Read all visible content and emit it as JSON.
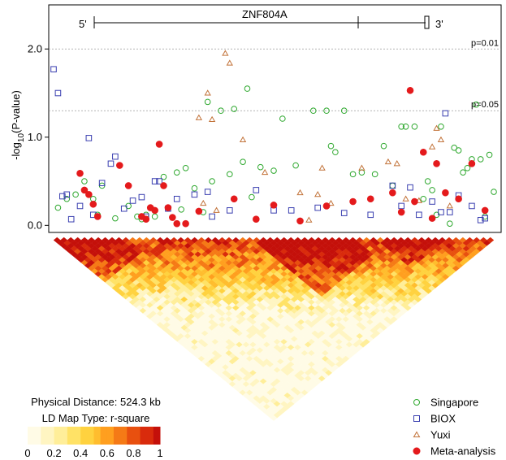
{
  "chart_data": {
    "type": "scatter",
    "ylabel_main": "-log",
    "ylabel_sub": "10",
    "ylabel_tail": "(P-value)",
    "ylim": [
      -0.08,
      2.5
    ],
    "y_ticks": [
      0.0,
      1.0,
      2.0
    ],
    "y_tick_labels": [
      "0.0",
      "1.0",
      "2.0"
    ],
    "thresholds": [
      {
        "value": 2.0,
        "label": "p=0.01"
      },
      {
        "value": 1.3,
        "label": "p=0.05"
      }
    ],
    "gene": {
      "name": "ZNF804A",
      "five_prime": "5'",
      "three_prime": "3'"
    },
    "legend": [
      "Singapore",
      "BIOX",
      "Yuxi",
      "Meta-analysis"
    ],
    "colors": {
      "singapore": "#2ea82e",
      "biox": "#3a3fb0",
      "yuxi": "#c2733a",
      "meta": "#e41a1c",
      "threshold_line": "#9a9a9a"
    },
    "ld": {
      "physical_distance_label": "Physical Distance: 524.3 kb",
      "map_type_label": "LD Map Type: r-square",
      "colorbar_ticks": [
        "0",
        "0.2",
        "0.4",
        "0.6",
        "0.8",
        "1"
      ]
    },
    "series": [
      {
        "name": "Singapore",
        "marker": "circle-open",
        "points": [
          [
            0.01,
            0.2
          ],
          [
            0.03,
            0.3
          ],
          [
            0.05,
            0.35
          ],
          [
            0.07,
            0.5
          ],
          [
            0.09,
            0.3
          ],
          [
            0.1,
            0.12
          ],
          [
            0.11,
            0.45
          ],
          [
            0.14,
            0.08
          ],
          [
            0.17,
            0.22
          ],
          [
            0.19,
            0.1
          ],
          [
            0.2,
            0.07
          ],
          [
            0.21,
            0.12
          ],
          [
            0.23,
            0.1
          ],
          [
            0.25,
            0.55
          ],
          [
            0.28,
            0.6
          ],
          [
            0.29,
            0.18
          ],
          [
            0.3,
            0.65
          ],
          [
            0.32,
            0.42
          ],
          [
            0.34,
            0.15
          ],
          [
            0.35,
            1.4
          ],
          [
            0.36,
            0.5
          ],
          [
            0.38,
            1.3
          ],
          [
            0.4,
            0.58
          ],
          [
            0.41,
            1.32
          ],
          [
            0.43,
            0.72
          ],
          [
            0.44,
            1.55
          ],
          [
            0.45,
            0.32
          ],
          [
            0.47,
            0.66
          ],
          [
            0.5,
            0.62
          ],
          [
            0.52,
            1.21
          ],
          [
            0.55,
            0.68
          ],
          [
            0.59,
            1.3
          ],
          [
            0.62,
            1.3
          ],
          [
            0.63,
            0.9
          ],
          [
            0.64,
            0.83
          ],
          [
            0.66,
            1.3
          ],
          [
            0.68,
            0.58
          ],
          [
            0.7,
            0.6
          ],
          [
            0.73,
            0.58
          ],
          [
            0.75,
            0.9
          ],
          [
            0.77,
            0.45
          ],
          [
            0.79,
            1.12
          ],
          [
            0.8,
            1.12
          ],
          [
            0.82,
            1.12
          ],
          [
            0.84,
            0.3
          ],
          [
            0.85,
            0.5
          ],
          [
            0.86,
            0.4
          ],
          [
            0.87,
            0.12
          ],
          [
            0.88,
            1.12
          ],
          [
            0.9,
            0.02
          ],
          [
            0.91,
            0.88
          ],
          [
            0.92,
            0.85
          ],
          [
            0.93,
            0.6
          ],
          [
            0.94,
            0.65
          ],
          [
            0.95,
            0.75
          ],
          [
            0.96,
            1.37
          ],
          [
            0.97,
            0.75
          ],
          [
            0.98,
            0.1
          ],
          [
            0.99,
            0.8
          ],
          [
            1.0,
            0.38
          ]
        ]
      },
      {
        "name": "BIOX",
        "marker": "square-open",
        "points": [
          [
            0.0,
            1.77
          ],
          [
            0.01,
            1.5
          ],
          [
            0.02,
            0.33
          ],
          [
            0.03,
            0.35
          ],
          [
            0.04,
            0.07
          ],
          [
            0.06,
            0.22
          ],
          [
            0.08,
            0.99
          ],
          [
            0.09,
            0.12
          ],
          [
            0.11,
            0.48
          ],
          [
            0.13,
            0.7
          ],
          [
            0.14,
            0.78
          ],
          [
            0.16,
            0.19
          ],
          [
            0.18,
            0.28
          ],
          [
            0.2,
            0.32
          ],
          [
            0.21,
            0.1
          ],
          [
            0.23,
            0.5
          ],
          [
            0.24,
            0.5
          ],
          [
            0.26,
            0.19
          ],
          [
            0.28,
            0.3
          ],
          [
            0.32,
            0.35
          ],
          [
            0.35,
            0.38
          ],
          [
            0.36,
            0.1
          ],
          [
            0.4,
            0.17
          ],
          [
            0.46,
            0.4
          ],
          [
            0.5,
            0.17
          ],
          [
            0.54,
            0.17
          ],
          [
            0.6,
            0.2
          ],
          [
            0.66,
            0.14
          ],
          [
            0.72,
            0.12
          ],
          [
            0.77,
            0.45
          ],
          [
            0.79,
            0.22
          ],
          [
            0.81,
            0.43
          ],
          [
            0.83,
            0.12
          ],
          [
            0.86,
            0.27
          ],
          [
            0.88,
            0.15
          ],
          [
            0.89,
            1.27
          ],
          [
            0.9,
            0.15
          ],
          [
            0.92,
            0.34
          ],
          [
            0.95,
            0.22
          ],
          [
            0.97,
            0.06
          ],
          [
            0.98,
            0.08
          ]
        ]
      },
      {
        "name": "Yuxi",
        "marker": "triangle-open",
        "points": [
          [
            0.33,
            1.22
          ],
          [
            0.34,
            0.25
          ],
          [
            0.35,
            1.5
          ],
          [
            0.36,
            1.2
          ],
          [
            0.37,
            0.17
          ],
          [
            0.39,
            1.95
          ],
          [
            0.4,
            1.84
          ],
          [
            0.43,
            0.97
          ],
          [
            0.48,
            0.6
          ],
          [
            0.56,
            0.37
          ],
          [
            0.58,
            0.06
          ],
          [
            0.6,
            0.35
          ],
          [
            0.61,
            0.65
          ],
          [
            0.63,
            0.25
          ],
          [
            0.7,
            0.65
          ],
          [
            0.76,
            0.72
          ],
          [
            0.78,
            0.7
          ],
          [
            0.8,
            0.3
          ],
          [
            0.83,
            0.28
          ],
          [
            0.86,
            0.89
          ],
          [
            0.87,
            1.1
          ],
          [
            0.88,
            0.97
          ],
          [
            0.9,
            0.22
          ]
        ]
      },
      {
        "name": "Meta-analysis",
        "marker": "circle-filled",
        "points": [
          [
            0.06,
            0.59
          ],
          [
            0.07,
            0.4
          ],
          [
            0.08,
            0.35
          ],
          [
            0.09,
            0.24
          ],
          [
            0.1,
            0.1
          ],
          [
            0.15,
            0.68
          ],
          [
            0.17,
            0.45
          ],
          [
            0.2,
            0.1
          ],
          [
            0.21,
            0.07
          ],
          [
            0.22,
            0.2
          ],
          [
            0.23,
            0.17
          ],
          [
            0.24,
            0.92
          ],
          [
            0.25,
            0.45
          ],
          [
            0.26,
            0.2
          ],
          [
            0.27,
            0.09
          ],
          [
            0.28,
            0.02
          ],
          [
            0.3,
            0.02
          ],
          [
            0.33,
            0.16
          ],
          [
            0.41,
            0.3
          ],
          [
            0.46,
            0.07
          ],
          [
            0.5,
            0.23
          ],
          [
            0.56,
            0.05
          ],
          [
            0.62,
            0.22
          ],
          [
            0.68,
            0.27
          ],
          [
            0.72,
            0.3
          ],
          [
            0.77,
            0.37
          ],
          [
            0.79,
            0.15
          ],
          [
            0.81,
            1.53
          ],
          [
            0.82,
            0.27
          ],
          [
            0.84,
            0.83
          ],
          [
            0.86,
            0.08
          ],
          [
            0.87,
            0.7
          ],
          [
            0.89,
            0.37
          ],
          [
            0.92,
            0.3
          ],
          [
            0.95,
            0.7
          ],
          [
            0.98,
            0.17
          ]
        ]
      }
    ]
  }
}
